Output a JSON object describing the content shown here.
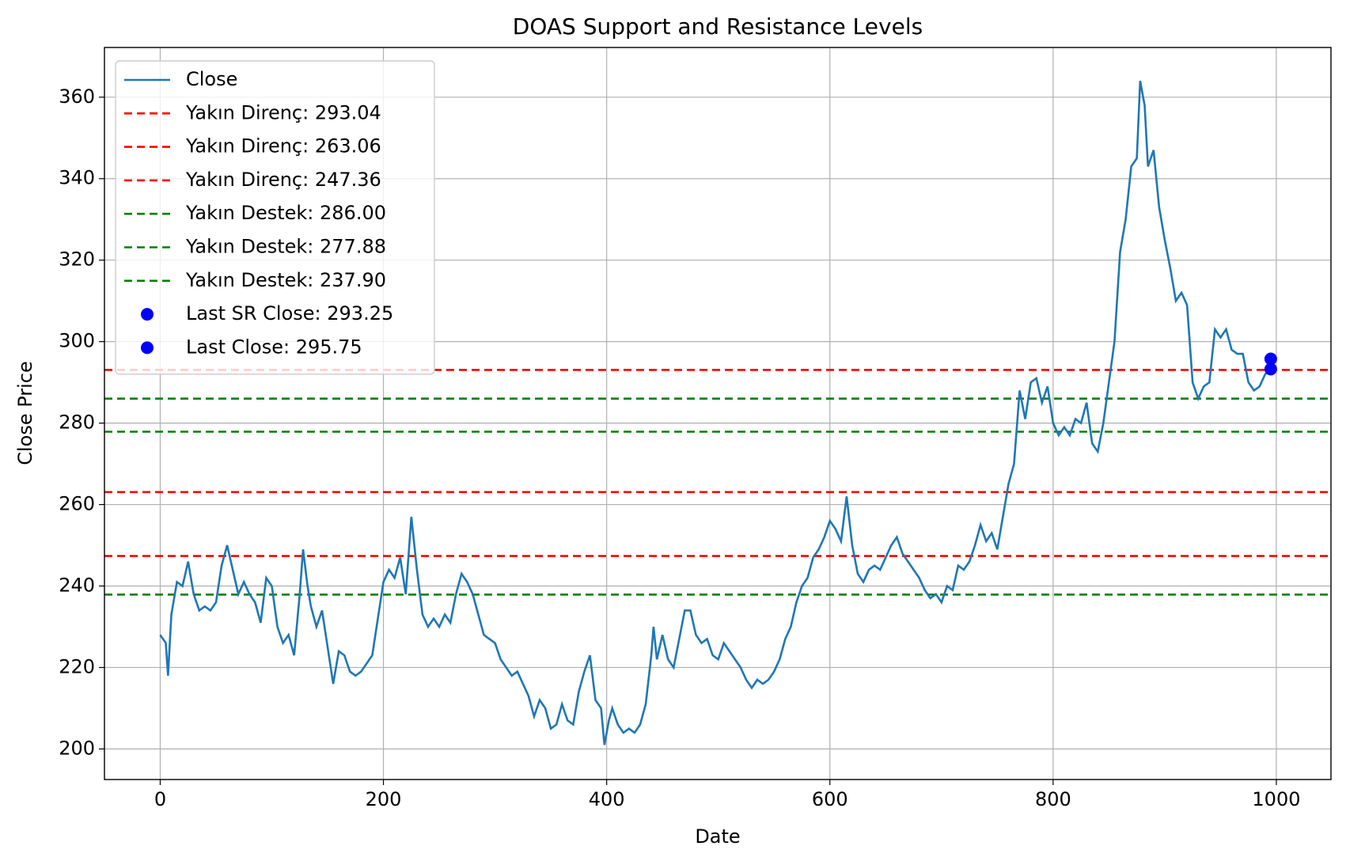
{
  "chart_data": {
    "type": "line",
    "title": "DOAS Support and Resistance Levels",
    "xlabel": "Date",
    "ylabel": "Close Price",
    "xlim": [
      -49.95,
      1048.95
    ],
    "ylim": [
      192.5,
      372.2
    ],
    "xticks": [
      0,
      200,
      400,
      600,
      800,
      1000
    ],
    "yticks": [
      200,
      220,
      240,
      260,
      280,
      300,
      320,
      340,
      360
    ],
    "grid": true,
    "legend": "upper left",
    "series": [
      {
        "name": "Close",
        "color": "#1f77b4",
        "x": [
          0,
          5,
          7,
          10,
          15,
          20,
          25,
          30,
          35,
          40,
          45,
          50,
          55,
          60,
          65,
          70,
          75,
          80,
          85,
          90,
          95,
          100,
          105,
          110,
          115,
          120,
          125,
          128,
          132,
          135,
          140,
          145,
          150,
          155,
          160,
          165,
          170,
          175,
          180,
          185,
          190,
          195,
          200,
          205,
          210,
          215,
          220,
          225,
          230,
          235,
          240,
          245,
          250,
          255,
          260,
          265,
          270,
          275,
          280,
          285,
          290,
          295,
          300,
          305,
          310,
          315,
          320,
          325,
          330,
          335,
          340,
          345,
          350,
          355,
          360,
          365,
          370,
          375,
          380,
          385,
          390,
          395,
          398,
          402,
          405,
          410,
          415,
          420,
          425,
          430,
          435,
          440,
          442,
          445,
          450,
          455,
          460,
          465,
          470,
          475,
          480,
          485,
          490,
          495,
          500,
          505,
          510,
          515,
          520,
          525,
          530,
          535,
          540,
          545,
          550,
          555,
          560,
          565,
          570,
          575,
          580,
          585,
          590,
          595,
          600,
          605,
          610,
          615,
          620,
          625,
          630,
          635,
          640,
          645,
          650,
          655,
          660,
          665,
          670,
          675,
          680,
          685,
          690,
          695,
          700,
          705,
          710,
          715,
          720,
          725,
          730,
          735,
          740,
          745,
          750,
          755,
          760,
          765,
          770,
          775,
          780,
          785,
          790,
          795,
          800,
          805,
          810,
          815,
          820,
          825,
          830,
          835,
          840,
          845,
          850,
          855,
          860,
          865,
          870,
          875,
          878,
          882,
          885,
          890,
          895,
          900,
          905,
          910,
          915,
          920,
          925,
          930,
          935,
          940,
          945,
          950,
          955,
          960,
          965,
          970,
          975,
          980,
          985,
          990,
          995,
          999
        ],
        "values": [
          228,
          226,
          218,
          233,
          241,
          240,
          246,
          238,
          234,
          235,
          234,
          236,
          245,
          250,
          244,
          238,
          241,
          238,
          236,
          231,
          242,
          240,
          230,
          226,
          228,
          223,
          238,
          249,
          240,
          235,
          230,
          234,
          225,
          216,
          224,
          223,
          219,
          218,
          219,
          221,
          223,
          232,
          241,
          244,
          242,
          247,
          238,
          257,
          244,
          233,
          230,
          232,
          230,
          233,
          231,
          238,
          243,
          241,
          238,
          233,
          228,
          227,
          226,
          222,
          220,
          218,
          219,
          216,
          213,
          208,
          212,
          210,
          205,
          206,
          211,
          207,
          206,
          214,
          219,
          223,
          212,
          210,
          201,
          207,
          210,
          206,
          204,
          205,
          204,
          206,
          211,
          223,
          230,
          222,
          228,
          222,
          220,
          227,
          234,
          234,
          228,
          226,
          227,
          223,
          222,
          226,
          224,
          222,
          220,
          217,
          215,
          217,
          216,
          217,
          219,
          222,
          227,
          230,
          236,
          240,
          242,
          247,
          249,
          252,
          256,
          254,
          251,
          262,
          250,
          243,
          241,
          244,
          245,
          244,
          247,
          250,
          252,
          248,
          246,
          244,
          242,
          239,
          237,
          238,
          236,
          240,
          239,
          245,
          244,
          246,
          250,
          255,
          251,
          253,
          249,
          257,
          265,
          270,
          288,
          281,
          290,
          291,
          285,
          289,
          280,
          277,
          279,
          277,
          281,
          280,
          285,
          275,
          273,
          280,
          290,
          300,
          322,
          330,
          343,
          345,
          364,
          358,
          343,
          347,
          333,
          325,
          318,
          310,
          312,
          309,
          290,
          286,
          289,
          290,
          303,
          301,
          303,
          298,
          297,
          297,
          290,
          288,
          289,
          292,
          293,
          295.75
        ]
      }
    ],
    "hlines": [
      {
        "name": "Yakın Direnç: 293.04",
        "color": "#ff0000",
        "value": 293.04
      },
      {
        "name": "Yakın Direnç: 263.06",
        "color": "#ff0000",
        "value": 263.06
      },
      {
        "name": "Yakın Direnç: 247.36",
        "color": "#ff0000",
        "value": 247.36
      },
      {
        "name": "Yakın Destek: 286.00",
        "color": "#008000",
        "value": 286.0
      },
      {
        "name": "Yakın Destek: 277.88",
        "color": "#008000",
        "value": 277.88
      },
      {
        "name": "Yakın Destek: 237.90",
        "color": "#008000",
        "value": 237.9
      }
    ],
    "points": [
      {
        "name": "Last SR Close: 293.25",
        "color": "#0000ff",
        "x": 995,
        "y": 293.25
      },
      {
        "name": "Last Close: 295.75",
        "color": "#0000ff",
        "x": 995,
        "y": 295.75
      }
    ]
  }
}
